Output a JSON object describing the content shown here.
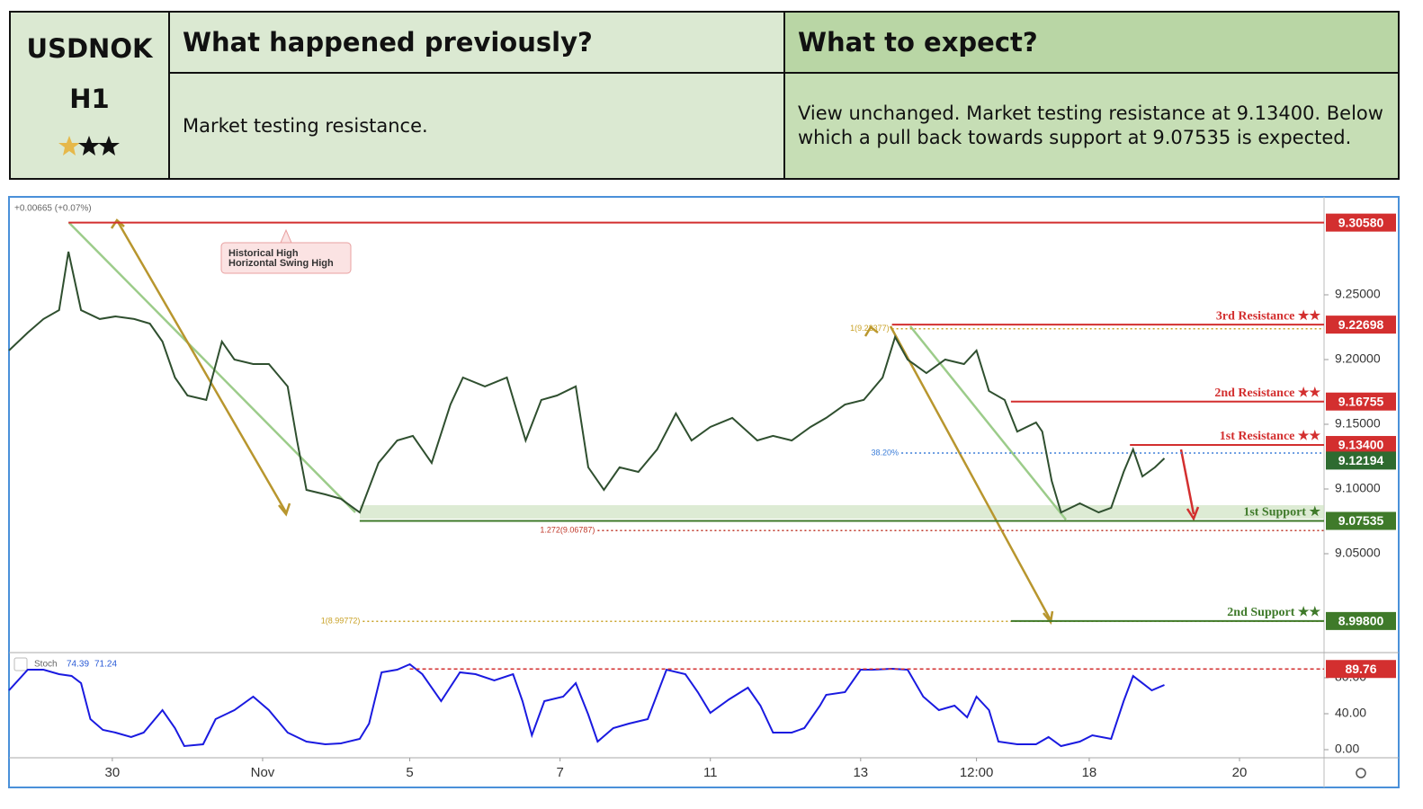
{
  "table": {
    "symbol": "USDNOK",
    "timeframe": "H1",
    "header": [
      "What happened previously?",
      "What to expect?"
    ],
    "body": [
      "Market testing resistance.",
      "View unchanged. Market testing resistance at 9.13400. Below which a pull back towards support at 9.07535 is expected."
    ]
  },
  "chart_data": [
    {
      "type": "line",
      "change": "+0.00665 (+0.07%)",
      "annotation": [
        "Historical High",
        "Horizontal Swing High"
      ],
      "x": [
        0,
        6,
        11,
        16,
        19,
        23,
        29,
        34,
        40,
        45,
        49,
        53,
        57,
        63,
        68,
        72,
        78,
        83,
        89,
        92,
        95,
        101,
        106,
        112,
        118,
        124,
        129,
        135,
        141,
        145,
        152,
        159,
        165,
        170,
        175,
        181,
        185,
        190,
        195,
        201,
        207,
        213,
        218,
        224,
        231,
        239,
        244,
        250,
        256,
        261,
        267,
        273,
        279,
        283,
        287,
        293,
        299,
        305,
        309,
        313,
        318,
        322,
        328,
        330,
        333,
        336,
        342,
        348,
        352,
        356,
        359,
        362,
        366,
        369
      ],
      "values": [
        9.207,
        9.2208,
        9.2313,
        9.2382,
        9.2833,
        9.2382,
        9.2313,
        9.2333,
        9.2313,
        9.2278,
        9.2139,
        9.1861,
        9.1722,
        9.1688,
        9.2139,
        9.2,
        9.1965,
        9.1965,
        9.1792,
        9.1375,
        9.0993,
        9.0958,
        9.0924,
        9.0819,
        9.1201,
        9.1375,
        9.141,
        9.1201,
        9.1653,
        9.1861,
        9.1792,
        9.1861,
        9.1375,
        9.1688,
        9.1722,
        9.1792,
        9.1167,
        9.0993,
        9.1167,
        9.1132,
        9.1306,
        9.1583,
        9.1375,
        9.1479,
        9.1549,
        9.1375,
        9.141,
        9.1375,
        9.1479,
        9.1549,
        9.1653,
        9.1688,
        9.1861,
        9.2174,
        9.2,
        9.1896,
        9.2,
        9.1965,
        9.207,
        9.1757,
        9.1688,
        9.1444,
        9.1514,
        9.1444,
        9.1063,
        9.0819,
        9.0889,
        9.0819,
        9.0854,
        9.1132,
        9.1306,
        9.1097,
        9.1167,
        9.1237
      ],
      "color": "#2f4f2f",
      "xlim": [
        0,
        420
      ],
      "xticks": [
        {
          "value": 33,
          "label": "30"
        },
        {
          "value": 81,
          "label": "Nov"
        },
        {
          "value": 128,
          "label": "5"
        },
        {
          "value": 176,
          "label": "7"
        },
        {
          "value": 224,
          "label": "11"
        },
        {
          "value": 272,
          "label": "13"
        },
        {
          "value": 309,
          "label": "12:00"
        },
        {
          "value": 345,
          "label": "18"
        },
        {
          "value": 393,
          "label": "20"
        }
      ],
      "ylim": [
        8.9743,
        9.3236
      ],
      "yticks": [
        {
          "value": 9.05,
          "label": "9.05000"
        },
        {
          "value": 9.1,
          "label": "9.10000"
        },
        {
          "value": 9.15,
          "label": "9.15000"
        },
        {
          "value": 9.2,
          "label": "9.20000"
        },
        {
          "value": 9.25,
          "label": "9.25000"
        }
      ],
      "levels": [
        {
          "value": 9.3058,
          "label": "9.30580",
          "color": "#d32f2f",
          "from": 19
        },
        {
          "name": "3rd Resistance ★★",
          "value": 9.22698,
          "label": "9.22698",
          "color": "#d32f2f",
          "from": 282
        },
        {
          "name": "2nd Resistance ★★",
          "value": 9.16755,
          "label": "9.16755",
          "color": "#d32f2f",
          "from": 320
        },
        {
          "name": "1st Resistance ★★",
          "value": 9.134,
          "label": "9.13400",
          "color": "#d32f2f",
          "from": 358
        },
        {
          "value": 9.12194,
          "label": "9.12194",
          "color": "#2e6b30"
        },
        {
          "name": "1st Support ★",
          "value": 9.07535,
          "label": "9.07535",
          "color": "#3f7a2a",
          "from": 112
        },
        {
          "name": "2nd Support ★★",
          "value": 8.998,
          "label": "8.99800",
          "color": "#3f7a2a",
          "from": 320
        }
      ],
      "fib": [
        {
          "label": "1(9.22377)",
          "value": 9.22377,
          "color": "#c9a227",
          "from": 282
        },
        {
          "label": "38.20%",
          "value": 9.1278,
          "color": "#3b7dd8",
          "from": 285
        },
        {
          "label": "1.272(9.06787)",
          "value": 9.06787,
          "color": "#c0392b",
          "from": 188
        },
        {
          "label": "1(8.99772)",
          "value": 8.99772,
          "color": "#c9a227",
          "from": 113
        }
      ]
    },
    {
      "type": "line",
      "indicator": "Stoch",
      "k": 74.39,
      "d": 71.24,
      "x": [
        0,
        6,
        11,
        16,
        20,
        23,
        26,
        30,
        34,
        39,
        43,
        49,
        53,
        56,
        62,
        66,
        72,
        78,
        83,
        89,
        95,
        101,
        106,
        112,
        115,
        119,
        124,
        128,
        132,
        138,
        144,
        149,
        155,
        161,
        164,
        167,
        171,
        177,
        181,
        185,
        188,
        193,
        198,
        204,
        210,
        216,
        220,
        224,
        230,
        236,
        240,
        244,
        250,
        254,
        259,
        261,
        267,
        272,
        276,
        282,
        287,
        292,
        297,
        302,
        306,
        309,
        313,
        316,
        322,
        328,
        332,
        336,
        342,
        346,
        352,
        356,
        359,
        365,
        369
      ],
      "values": [
        66,
        89,
        89,
        84,
        82,
        74,
        34,
        22,
        19,
        14,
        19,
        44,
        24,
        4,
        6,
        34,
        44,
        59,
        44,
        19,
        9,
        6,
        7,
        12,
        29,
        86,
        89,
        95,
        84,
        54,
        86,
        84,
        77,
        84,
        54,
        16,
        54,
        59,
        74,
        39,
        9,
        24,
        29,
        34,
        89,
        84,
        64,
        41,
        56,
        69,
        49,
        19,
        19,
        24,
        49,
        61,
        64,
        89,
        89,
        90,
        89,
        59,
        44,
        49,
        36,
        59,
        44,
        9,
        6,
        6,
        14,
        4,
        9,
        16,
        12,
        54,
        82,
        66,
        72
      ],
      "color": "#1a1ae0",
      "xlim": [
        0,
        420
      ],
      "ylim": [
        -8,
        107
      ],
      "yticks": [
        {
          "value": 0,
          "label": "0.00"
        },
        {
          "value": 40,
          "label": "40.00"
        },
        {
          "value": 80,
          "label": "80.00"
        }
      ],
      "level": 89.76,
      "level_from": 128,
      "level_color": "#d32f2f"
    }
  ]
}
